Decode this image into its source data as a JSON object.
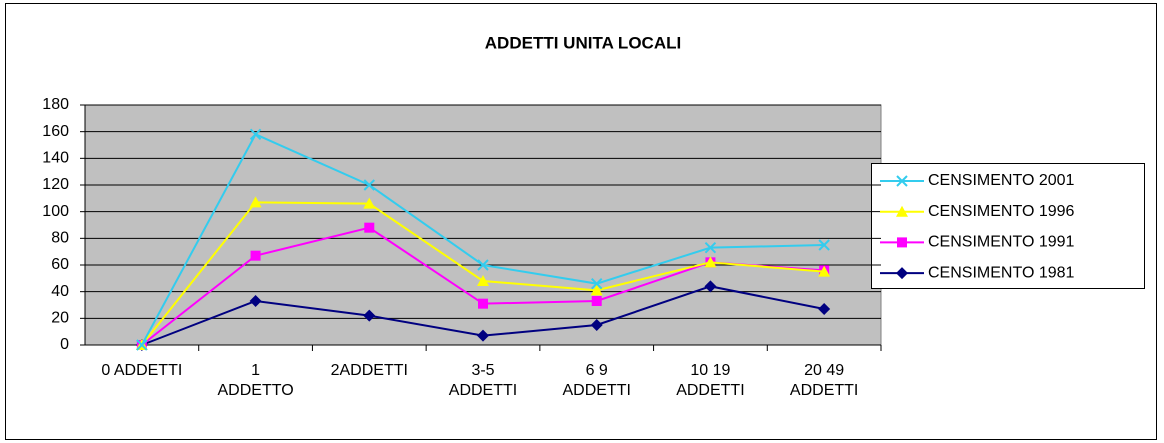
{
  "chart_data": {
    "type": "line",
    "title": "ADDETTI UNITA LOCALI",
    "categories": [
      "0 ADDETTI",
      "1\nADDETTO",
      "2ADDETTI",
      "3-5\nADDETTI",
      "6 9\nADDETTI",
      "10 19\nADDETTI",
      "20 49\nADDETTI"
    ],
    "series": [
      {
        "name": "CENSIMENTO 2001",
        "color": "#33ccee",
        "marker": "x",
        "values": [
          0,
          158,
          120,
          60,
          46,
          73,
          75
        ]
      },
      {
        "name": "CENSIMENTO 1996",
        "color": "#ffff00",
        "marker": "triangle",
        "values": [
          0,
          107,
          106,
          48,
          41,
          62,
          55
        ]
      },
      {
        "name": "CENSIMENTO 1991",
        "color": "#ff00ff",
        "marker": "square",
        "values": [
          0,
          67,
          88,
          31,
          33,
          62,
          56
        ]
      },
      {
        "name": "CENSIMENTO 1981",
        "color": "#000080",
        "marker": "diamond",
        "values": [
          0,
          33,
          22,
          7,
          15,
          44,
          27
        ]
      }
    ],
    "ylim": [
      0,
      180
    ],
    "yticks": [
      0,
      20,
      40,
      60,
      80,
      100,
      120,
      140,
      160,
      180
    ],
    "grid": true,
    "legend": "right"
  }
}
